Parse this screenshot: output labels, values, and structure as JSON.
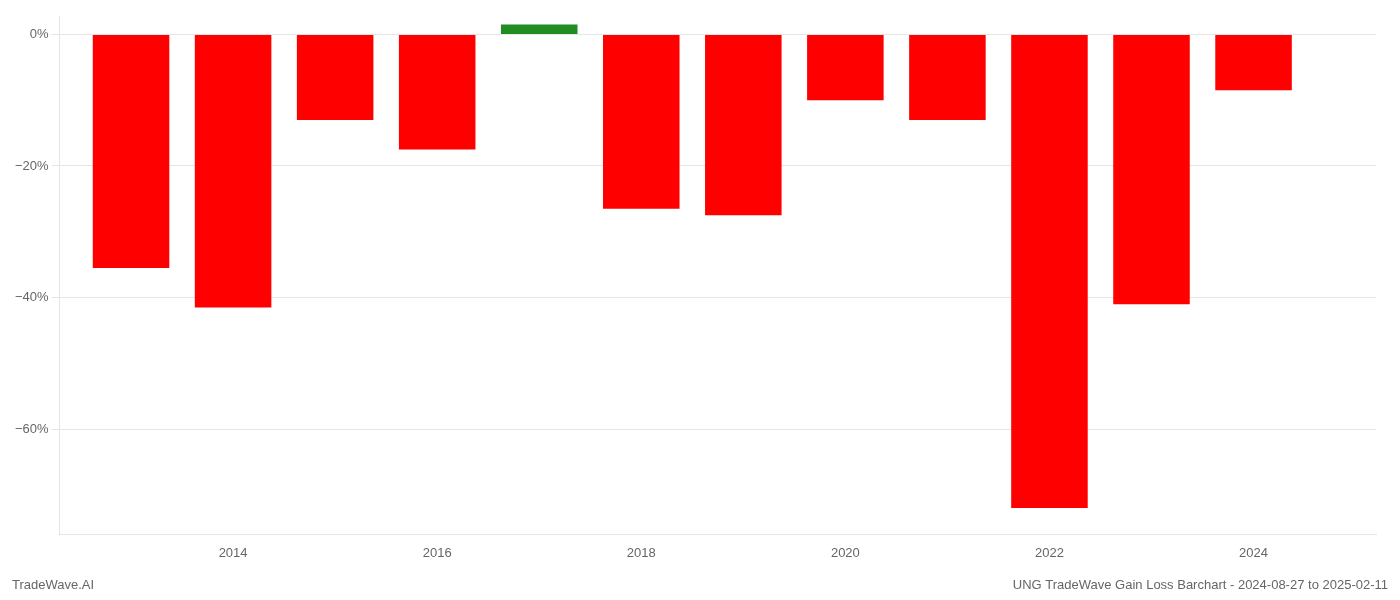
{
  "chart_data": {
    "type": "bar",
    "title": "UNG TradeWave Gain Loss Barchart - 2024-08-27 to 2025-02-11",
    "annotations": [
      "TradeWave.AI"
    ],
    "x": [
      2013,
      2014,
      2015,
      2016,
      2017,
      2018,
      2019,
      2020,
      2021,
      2022,
      2023,
      2024
    ],
    "values": [
      -0.355,
      -0.415,
      -0.13,
      -0.175,
      0.015,
      -0.265,
      -0.275,
      -0.1,
      -0.13,
      -0.72,
      -0.41,
      -0.085
    ],
    "colors": [
      "#ff0000",
      "#ff0000",
      "#ff0000",
      "#ff0000",
      "#228B22",
      "#ff0000",
      "#ff0000",
      "#ff0000",
      "#ff0000",
      "#ff0000",
      "#ff0000",
      "#ff0000"
    ],
    "xlim": [
      2012.3,
      2025.2
    ],
    "xticks": [
      2014,
      2016,
      2018,
      2020,
      2022,
      2024
    ],
    "ylim": [
      -0.76,
      0.028
    ],
    "yticks": [
      {
        "value": 0,
        "label": "0%"
      },
      {
        "value": -0.2,
        "label": "−20%"
      },
      {
        "value": -0.4,
        "label": "−40%"
      },
      {
        "value": -0.6,
        "label": "−60%"
      }
    ],
    "grid": "y"
  }
}
